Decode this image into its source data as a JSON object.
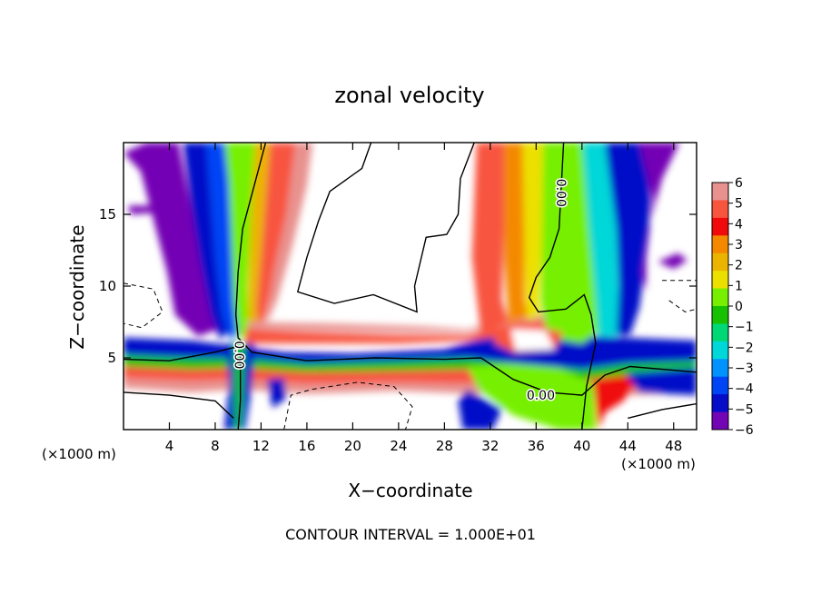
{
  "chart_data": {
    "type": "heatmap",
    "title": "zonal velocity",
    "xlabel": "X−coordinate",
    "ylabel": "Z−coordinate",
    "x_unit_left": "(×1000 m)",
    "x_unit_right": "(×1000 m)",
    "xlim": [
      0,
      50
    ],
    "ylim": [
      0,
      20
    ],
    "x_ticks": [
      4,
      8,
      12,
      16,
      20,
      24,
      28,
      32,
      36,
      40,
      44,
      48
    ],
    "x_tick_labels": [
      "4",
      "8",
      "12",
      "16",
      "20",
      "24",
      "28",
      "32",
      "36",
      "40",
      "44",
      "48"
    ],
    "y_ticks": [
      5,
      10,
      15
    ],
    "y_tick_labels": [
      "5",
      "10",
      "15"
    ],
    "colorbar": {
      "range": [
        -6,
        6
      ],
      "tick_values": [
        6,
        5,
        4,
        3,
        2,
        1,
        0,
        -1,
        -2,
        -3,
        -4,
        -5,
        -6
      ],
      "tick_labels": [
        "6",
        "5",
        "4",
        "3",
        "2",
        "1",
        "0",
        "−1",
        "−2",
        "−3",
        "−4",
        "−5",
        "−6"
      ],
      "colors": [
        "#e8928f",
        "#f8553f",
        "#f00a0c",
        "#f48900",
        "#ebb400",
        "#ece000",
        "#76f000",
        "#17c000",
        "#00d876",
        "#00d7d8",
        "#0093ff",
        "#0045f5",
        "#050dc8",
        "#7306b4"
      ]
    },
    "contour_labels": [
      {
        "text": "0.00",
        "x": 38.2,
        "z": 16.5,
        "rotation": 90
      },
      {
        "text": "0.00",
        "x": 10.1,
        "z": 5.2,
        "rotation": 90
      },
      {
        "text": "0.00",
        "x": 36.4,
        "z": 2.4,
        "rotation": 0
      }
    ],
    "features": [
      {
        "name": "left updraft column",
        "x_range": [
          6,
          16
        ],
        "z_range": [
          0,
          20
        ],
        "value_range": [
          -6,
          5
        ]
      },
      {
        "name": "right jet column",
        "x_range": [
          30,
          46
        ],
        "z_range": [
          0,
          20
        ],
        "value_range": [
          -6,
          6
        ]
      },
      {
        "name": "low-level shear band",
        "x_range": [
          0,
          50
        ],
        "z_range": [
          3,
          7
        ],
        "value_range": [
          -6,
          6
        ]
      },
      {
        "name": "upper white region",
        "x_range": [
          16,
          30
        ],
        "z_range": [
          7,
          20
        ],
        "value_range": [
          -6,
          6
        ]
      }
    ],
    "footnote": "CONTOUR INTERVAL = 1.000E+01"
  }
}
